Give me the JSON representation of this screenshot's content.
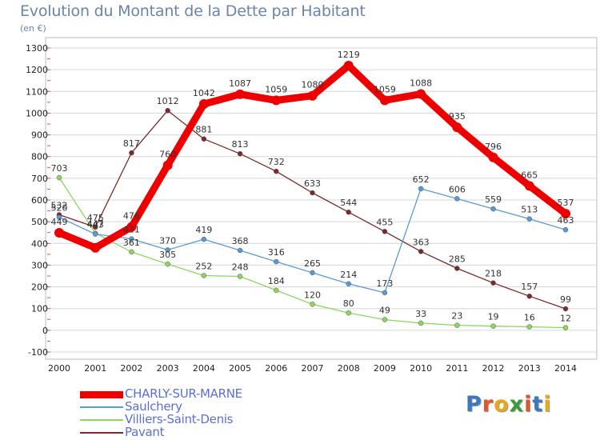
{
  "header": {
    "title": "Evolution du Montant de la Dette par Habitant",
    "unit": "(en €)"
  },
  "logo": {
    "text": "Proxiti",
    "letter_colors": [
      "#3b78c3",
      "#e2562b",
      "#e8a81c",
      "#3b9a3e",
      "#e2562b",
      "#3b78c3",
      "#e8a81c"
    ]
  },
  "colors": {
    "title": "#6a84ad",
    "axis_text": "#222222",
    "grid": "#d6d6d6",
    "frame": "#bbbbbb",
    "legend_text": "#5b6fd6"
  },
  "chart_data": {
    "type": "line",
    "title": "Evolution du Montant de la Dette par Habitant",
    "ylabel": "(en €)",
    "xlabel": "",
    "ylim": [
      -100,
      1300
    ],
    "yticks": [
      -100,
      0,
      100,
      200,
      300,
      400,
      500,
      600,
      700,
      800,
      900,
      1000,
      1100,
      1200,
      1300
    ],
    "grid": "horizontal",
    "legend_position": "bottom-left",
    "x": [
      "2000",
      "2001",
      "2002",
      "2003",
      "2004",
      "2005",
      "2006",
      "2007",
      "2008",
      "2009",
      "2010",
      "2011",
      "2012",
      "2013",
      "2014"
    ],
    "series": [
      {
        "name": "CHARLY-SUR-MARNE",
        "color": "#ee0000",
        "values": [
          449,
          380,
          476,
          760,
          1042,
          1087,
          1059,
          1080,
          1219,
          1059,
          1088,
          935,
          796,
          665,
          537
        ],
        "labels": [
          "449",
          "",
          "476",
          "760",
          "1042",
          "1087",
          "1059",
          "1080",
          "1219",
          "1059",
          "1088",
          "935",
          "796",
          "665",
          "537"
        ]
      },
      {
        "name": "Saulchery",
        "color": "#5a9ad4",
        "values": [
          520,
          443,
          421,
          370,
          419,
          368,
          316,
          265,
          214,
          173,
          652,
          606,
          559,
          513,
          463
        ],
        "labels": [
          "520",
          "443",
          "421",
          "370",
          "419",
          "368",
          "316",
          "265",
          "214",
          "173",
          "652",
          "606",
          "559",
          "513",
          "463"
        ]
      },
      {
        "name": "Villiers-Saint-Denis",
        "color": "#8cd65e",
        "values": [
          703,
          447,
          361,
          305,
          252,
          248,
          184,
          120,
          80,
          49,
          33,
          23,
          19,
          16,
          12
        ],
        "labels": [
          "703",
          "447",
          "361",
          "305",
          "252",
          "248",
          "184",
          "120",
          "80",
          "49",
          "33",
          "23",
          "19",
          "16",
          "12"
        ]
      },
      {
        "name": "Pavant",
        "color": "#7a2a2a",
        "values": [
          532,
          475,
          817,
          1012,
          881,
          813,
          732,
          633,
          544,
          455,
          363,
          285,
          218,
          157,
          99
        ],
        "labels": [
          "532",
          "475",
          "817",
          "1012",
          "881",
          "813",
          "732",
          "633",
          "544",
          "455",
          "363",
          "285",
          "218",
          "157",
          "99"
        ]
      }
    ]
  }
}
